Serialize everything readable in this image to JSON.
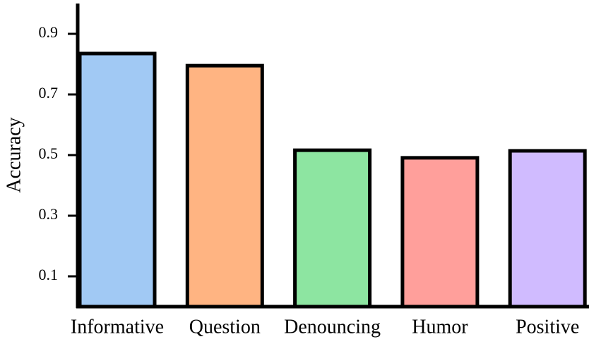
{
  "chart_data": {
    "type": "bar",
    "y_label": "Accuracy",
    "categories": [
      "Informative",
      "Question",
      "Denouncing",
      "Humor",
      "Positive"
    ],
    "values": [
      0.835,
      0.795,
      0.516,
      0.491,
      0.514
    ],
    "colors": [
      "#a1c9f4",
      "#ffb482",
      "#8de5a1",
      "#ff9f9b",
      "#d0bbff"
    ],
    "ylim": [
      0,
      1
    ],
    "yticks": [
      0.1,
      0.3,
      0.5,
      0.7,
      0.9
    ]
  }
}
